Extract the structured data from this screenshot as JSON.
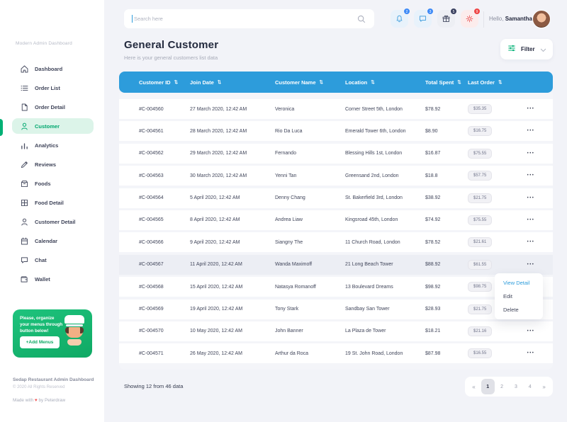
{
  "sidebar": {
    "caption": "Modern Admin Dashboard",
    "items": [
      {
        "label": "Dashboard",
        "icon": "home",
        "active": false
      },
      {
        "label": "Order List",
        "icon": "list",
        "active": false
      },
      {
        "label": "Order Detail",
        "icon": "file",
        "active": false
      },
      {
        "label": "Customer",
        "icon": "person",
        "active": true
      },
      {
        "label": "Analytics",
        "icon": "chart",
        "active": false
      },
      {
        "label": "Reviews",
        "icon": "pencil",
        "active": false
      },
      {
        "label": "Foods",
        "icon": "box",
        "active": false
      },
      {
        "label": "Food Detail",
        "icon": "grid",
        "active": false
      },
      {
        "label": "Customer Detail",
        "icon": "person",
        "active": false
      },
      {
        "label": "Calendar",
        "icon": "calendar",
        "active": false
      },
      {
        "label": "Chat",
        "icon": "chat",
        "active": false
      },
      {
        "label": "Wallet",
        "icon": "wallet",
        "active": false
      }
    ],
    "promo": {
      "message": "Please, organize your menus through button below!",
      "button_label": "+Add Menus"
    },
    "footer": {
      "app_name": "Sedap Restaurant Admin Dashboard",
      "copyright": "© 2020 All Rights Reserved",
      "made_prefix": "Made with",
      "heart": "♥",
      "made_suffix": "by Peterdraw"
    }
  },
  "header": {
    "search_placeholder": "Search here",
    "notifications": [
      {
        "name": "bell",
        "count": "2",
        "icon_color": "#4AA3DF",
        "bg": "#E8F2FB",
        "badge_color": "#3D8AF7"
      },
      {
        "name": "chat",
        "count": "3",
        "icon_color": "#4AA3DF",
        "bg": "#E8F2FB",
        "badge_color": "#3D8AF7"
      },
      {
        "name": "gift",
        "count": "5",
        "icon_color": "#464C63",
        "bg": "#EDEFF4",
        "badge_color": "#3A4160"
      },
      {
        "name": "settings",
        "count": "9",
        "icon_color": "#EA5B5B",
        "bg": "#FCECEC",
        "badge_color": "#EF4444"
      }
    ],
    "greeting_prefix": "Hello,",
    "user_name": "Samantha"
  },
  "page": {
    "title": "General Customer",
    "subtitle": "Here is your general customers list data",
    "filter_label": "Filter"
  },
  "table": {
    "accent_color": "#2D9CDB",
    "columns": [
      "Customer ID",
      "Join Date",
      "Customer Name",
      "Location",
      "Total Spent",
      "Last Order"
    ],
    "sort_glyph": "⇅",
    "rows": [
      {
        "id": "#C-004560",
        "join_date": "27 March 2020, 12:42 AM",
        "name": "Veronica",
        "location": "Corner Street 5th, London",
        "total_spent": "$78.92",
        "last_order": "$35.35",
        "selected": false
      },
      {
        "id": "#C-004561",
        "join_date": "28 March 2020, 12:42 AM",
        "name": "Rio Da Luca",
        "location": "Emerald Tower 6th, London",
        "total_spent": "$8.90",
        "last_order": "$16.75",
        "selected": false
      },
      {
        "id": "#C-004562",
        "join_date": "29 March 2020, 12:42 AM",
        "name": "Fernando",
        "location": "Blessing Hills 1st, London",
        "total_spent": "$16.87",
        "last_order": "$75.55",
        "selected": false
      },
      {
        "id": "#C-004563",
        "join_date": "30 March 2020, 12:42 AM",
        "name": "Yenni Tan",
        "location": "Greensand 2nd, London",
        "total_spent": "$18.8",
        "last_order": "$57.75",
        "selected": false
      },
      {
        "id": "#C-004564",
        "join_date": "5 April 2020, 12:42 AM",
        "name": "Denny Chang",
        "location": "St. Bakerfield 3rd, London",
        "total_spent": "$38.92",
        "last_order": "$21.75",
        "selected": false
      },
      {
        "id": "#C-004565",
        "join_date": "8 April 2020, 12:42 AM",
        "name": "Andrea Liaw",
        "location": "Kingsroad 45th, London",
        "total_spent": "$74.92",
        "last_order": "$75.55",
        "selected": false
      },
      {
        "id": "#C-004566",
        "join_date": "9 April 2020, 12:42 AM",
        "name": "Siangny The",
        "location": "11 Church Road, London",
        "total_spent": "$78.52",
        "last_order": "$21.61",
        "selected": false
      },
      {
        "id": "#C-004567",
        "join_date": "11 April 2020, 12:42 AM",
        "name": "Wanda Maximoff",
        "location": "21 Long Beach Tower",
        "total_spent": "$88.92",
        "last_order": "$61.55",
        "selected": true
      },
      {
        "id": "#C-004568",
        "join_date": "15 April 2020, 12:42 AM",
        "name": "Natasya Romanoff",
        "location": "13 Boulevard Dreams",
        "total_spent": "$98.92",
        "last_order": "$98.75",
        "selected": false
      },
      {
        "id": "#C-004569",
        "join_date": "19 April 2020, 12:42 AM",
        "name": "Tony Stark",
        "location": "Sandbay San Tower",
        "total_spent": "$28.93",
        "last_order": "$21.75",
        "selected": false
      },
      {
        "id": "#C-004570",
        "join_date": "10 May 2020, 12:42 AM",
        "name": "John Banner",
        "location": "La Plaza de Tower",
        "total_spent": "$18.21",
        "last_order": "$21.16",
        "selected": false
      },
      {
        "id": "#C-004571",
        "join_date": "26 May 2020, 12:42 AM",
        "name": "Arthur da Roca",
        "location": "19 St. John Road, London",
        "total_spent": "$87.98",
        "last_order": "$16.55",
        "selected": false
      }
    ]
  },
  "context_menu": {
    "items": [
      "View Detail",
      "Edit",
      "Delete"
    ]
  },
  "pagination": {
    "showing": "Showing 12 from 46 data",
    "prev": "«",
    "next": "»",
    "pages": [
      "1",
      "2",
      "3",
      "4"
    ],
    "active_page": "1"
  }
}
